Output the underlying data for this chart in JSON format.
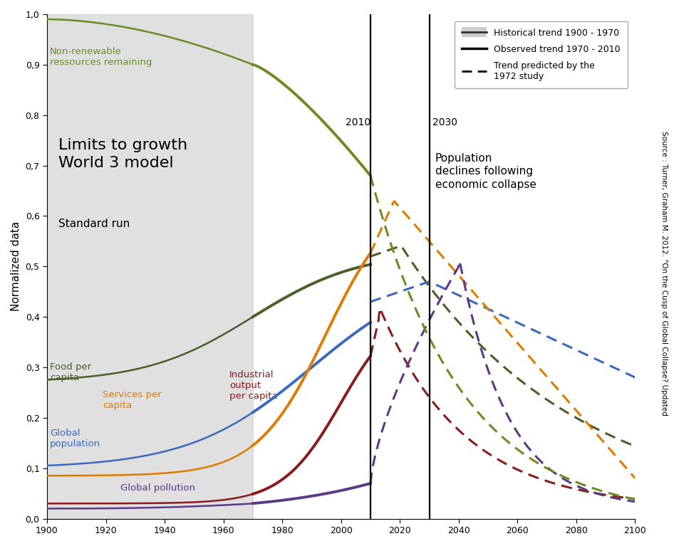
{
  "ylabel": "Normalized data",
  "xlim": [
    1900,
    2100
  ],
  "ylim": [
    0.0,
    1.0
  ],
  "yticks": [
    0.0,
    0.1,
    0.2,
    0.3,
    0.4,
    0.5,
    0.6,
    0.7,
    0.8,
    0.9,
    1.0
  ],
  "ytick_labels": [
    "0,0",
    "0,1",
    "0,2",
    "0,3",
    "0,4",
    "0,5",
    "0,6",
    "0,7",
    "0,8",
    "0,9",
    "1,0"
  ],
  "xticks": [
    1900,
    1920,
    1940,
    1960,
    1980,
    2000,
    2020,
    2040,
    2060,
    2080,
    2100
  ],
  "shaded_region": [
    1900,
    1970
  ],
  "vline_2010": 2010,
  "vline_2030": 2030,
  "source_text": "Source : Turner, Graham M. 2012. “On the Cusp of Global Collapse? Updated",
  "colors": {
    "non_renewable": "#6b8c23",
    "food": "#4a5e28",
    "population": "#3a6abf",
    "services": "#e07b00",
    "industrial": "#8b1a1a",
    "pollution": "#5b3a8a"
  },
  "legend_entries": [
    "Historical trend 1900 - 1970",
    "Observed trend 1970 - 2010",
    "Trend predicted by the\n1972 study"
  ]
}
